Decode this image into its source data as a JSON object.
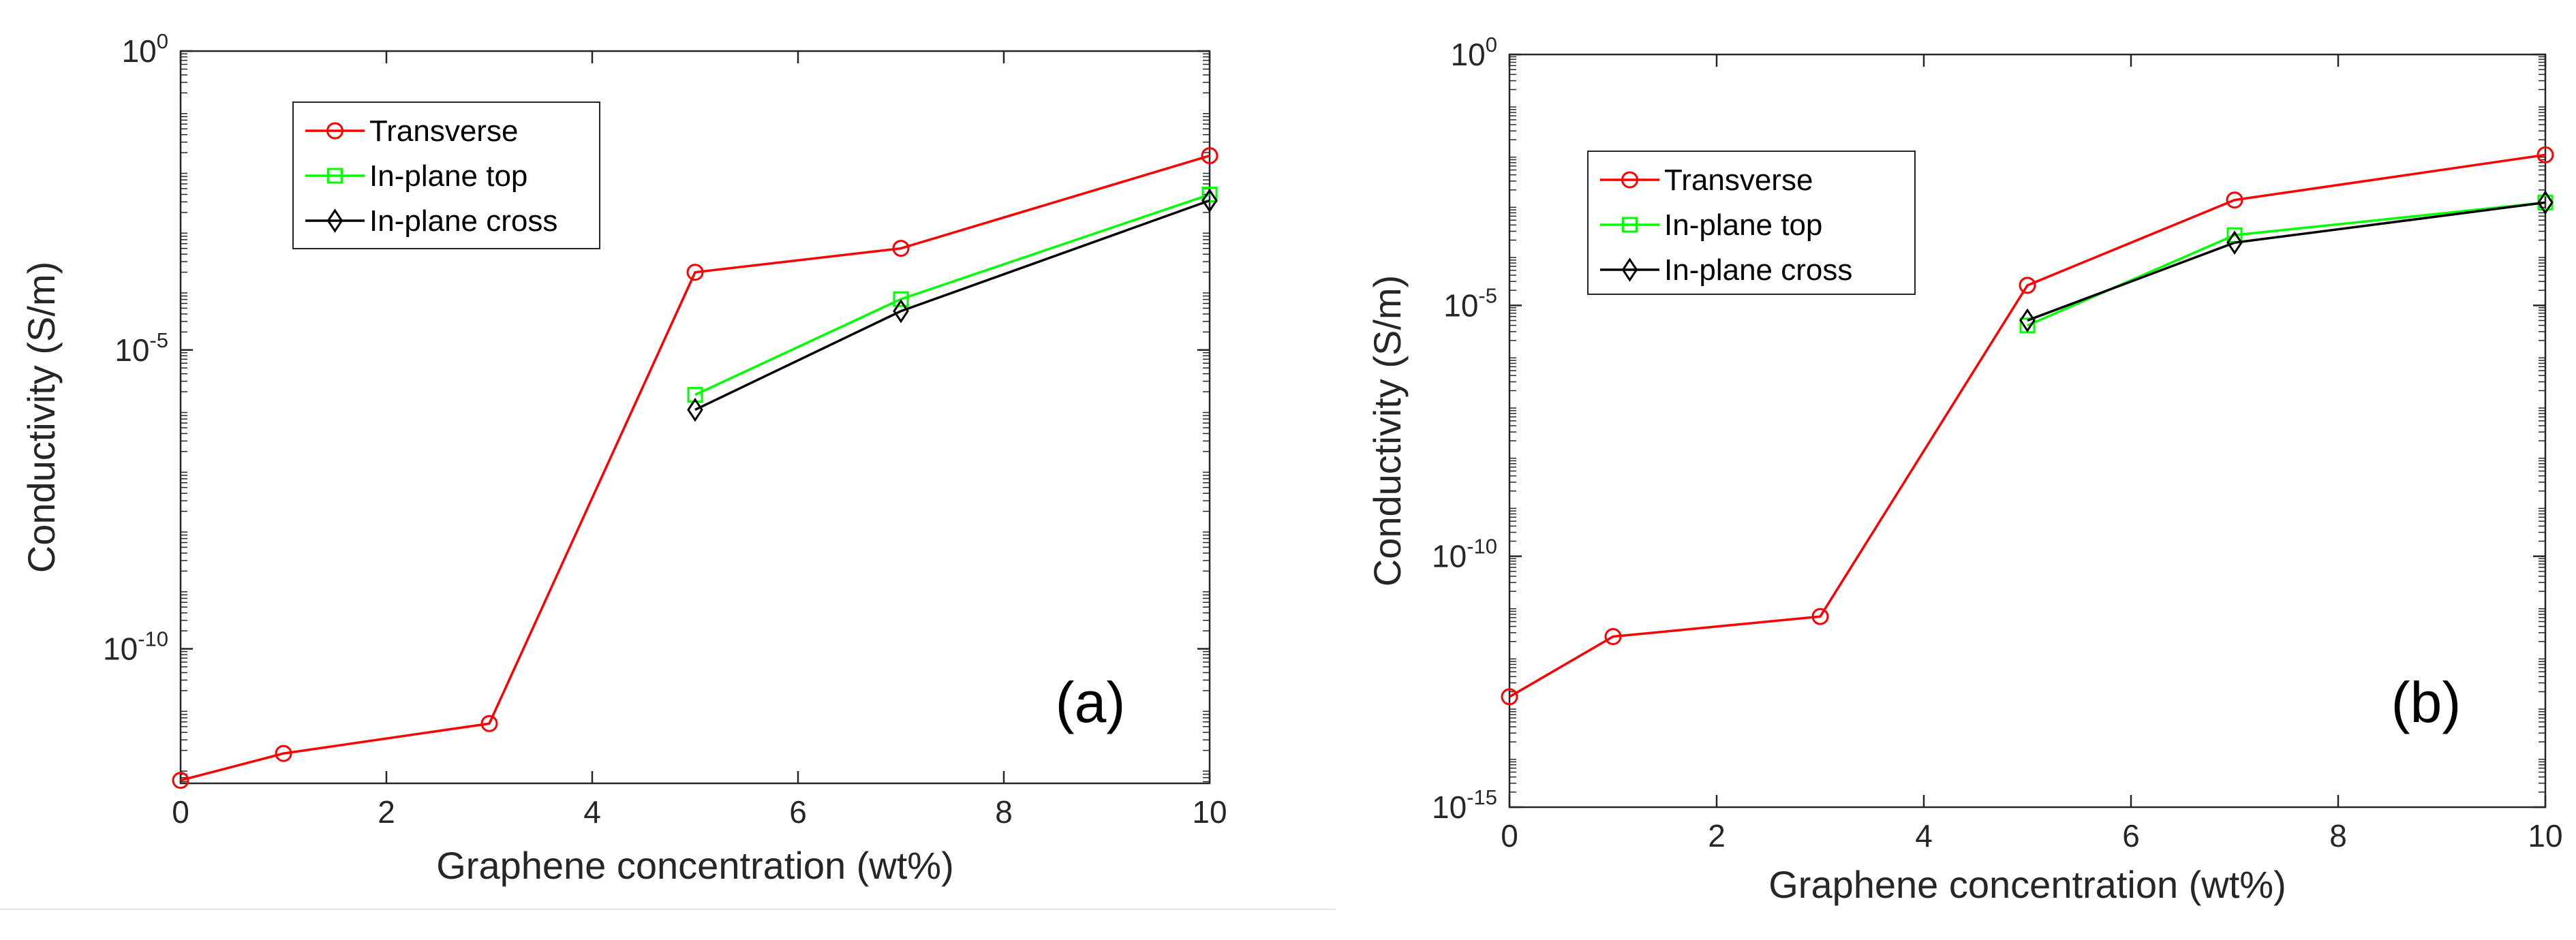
{
  "chart_data": [
    {
      "type": "line",
      "panel_label": "(a)",
      "xlabel": "Graphene concentration (wt%)",
      "ylabel": "Conductivity (S/m)",
      "yscale": "log",
      "xlim": [
        0,
        10
      ],
      "ylim_exp": [
        -12.2,
        0
      ],
      "xticks": [
        0,
        2,
        4,
        6,
        8,
        10
      ],
      "yticks": [
        {
          "base": "10",
          "exp": "0",
          "value_exp": 0
        },
        {
          "base": "10",
          "exp": "-5",
          "value_exp": -5
        },
        {
          "base": "10",
          "exp": "-10",
          "value_exp": -10
        }
      ],
      "legend_position": "top-left",
      "series": [
        {
          "name": "Transverse",
          "color": "#ff0000",
          "marker": "circle",
          "x": [
            0,
            1,
            3,
            5,
            7,
            10
          ],
          "y_exp": [
            -12.2,
            -11.75,
            -11.25,
            -3.7,
            -3.3,
            -1.75
          ]
        },
        {
          "name": "In-plane top",
          "color": "#00ff00",
          "marker": "square",
          "x": [
            5,
            7,
            10
          ],
          "y_exp": [
            -5.75,
            -4.15,
            -2.4
          ]
        },
        {
          "name": "In-plane cross",
          "color": "#000000",
          "marker": "diamond",
          "x": [
            5,
            7,
            10
          ],
          "y_exp": [
            -6.0,
            -4.35,
            -2.5
          ]
        }
      ]
    },
    {
      "type": "line",
      "panel_label": "(b)",
      "xlabel": "Graphene concentration (wt%)",
      "ylabel": "Conductivity (S/m)",
      "yscale": "log",
      "xlim": [
        0,
        10
      ],
      "ylim_exp": [
        -15,
        0
      ],
      "xticks": [
        0,
        2,
        4,
        6,
        8,
        10
      ],
      "yticks": [
        {
          "base": "10",
          "exp": "0",
          "value_exp": 0
        },
        {
          "base": "10",
          "exp": "-5",
          "value_exp": -5
        },
        {
          "base": "10",
          "exp": "-10",
          "value_exp": -10
        },
        {
          "base": "10",
          "exp": "-15",
          "value_exp": -15
        }
      ],
      "legend_position": "top-left",
      "series": [
        {
          "name": "Transverse",
          "color": "#ff0000",
          "marker": "circle",
          "x": [
            0,
            1,
            3,
            5,
            7,
            10
          ],
          "y_exp": [
            -12.8,
            -11.6,
            -11.2,
            -4.6,
            -2.9,
            -2.0
          ]
        },
        {
          "name": "In-plane top",
          "color": "#00ff00",
          "marker": "square",
          "x": [
            5,
            7,
            10
          ],
          "y_exp": [
            -5.4,
            -3.6,
            -2.95
          ]
        },
        {
          "name": "In-plane cross",
          "color": "#000000",
          "marker": "diamond",
          "x": [
            5,
            7,
            10
          ],
          "y_exp": [
            -5.3,
            -3.75,
            -2.95
          ]
        }
      ]
    }
  ]
}
